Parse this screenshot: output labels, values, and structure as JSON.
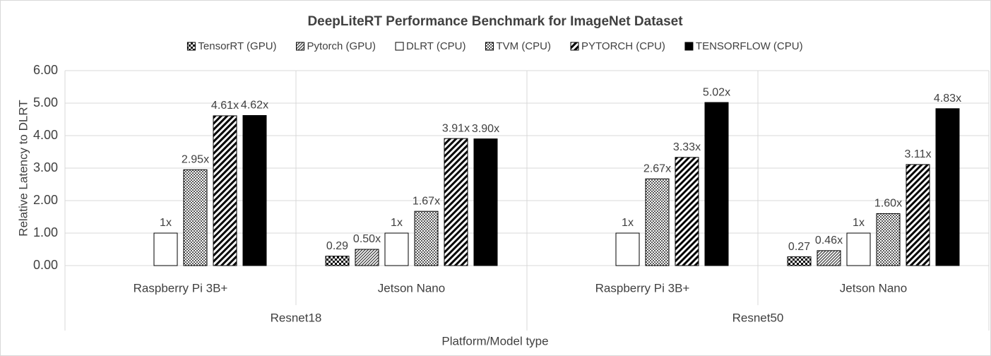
{
  "chart_data": {
    "type": "bar",
    "title": "DeepLiteRT Performance Benchmark for ImageNet Dataset",
    "y_label": "Relative Latency to DLRT",
    "x_label": "Platform/Model type",
    "categories": [
      "Raspberry Pi  3B+",
      "Jetson Nano",
      "Raspberry Pi  3B+",
      "Jetson Nano"
    ],
    "groups": [
      "Resnet18",
      "Resnet50"
    ],
    "series": [
      {
        "name": "TensorRT (GPU)",
        "color": "#000000",
        "pattern": "checker",
        "values": [
          null,
          0.29,
          null,
          0.27
        ],
        "value_labels": [
          null,
          "0.29",
          null,
          "0.27"
        ]
      },
      {
        "name": "Pytorch (GPU)",
        "color": "#000000",
        "pattern": "fine-diagonal",
        "values": [
          null,
          0.5,
          null,
          0.46
        ],
        "value_labels": [
          null,
          "0.50x",
          null,
          "0.46x"
        ]
      },
      {
        "name": "DLRT (CPU)",
        "color": "#000000",
        "pattern": "none",
        "values": [
          1,
          1,
          1,
          1
        ],
        "value_labels": [
          "1x",
          "1x",
          "1x",
          "1x"
        ]
      },
      {
        "name": "TVM (CPU)",
        "color": "#000000",
        "pattern": "dots",
        "values": [
          2.95,
          1.67,
          2.67,
          1.6
        ],
        "value_labels": [
          "2.95x",
          "1.67x",
          "2.67x",
          "1.60x"
        ]
      },
      {
        "name": "PYTORCH (CPU)",
        "color": "#000000",
        "pattern": "wide-diagonal",
        "values": [
          4.61,
          3.91,
          3.33,
          3.11
        ],
        "value_labels": [
          "4.61x",
          "3.91x",
          "3.33x",
          "3.11x"
        ]
      },
      {
        "name": "TENSORFLOW (CPU)",
        "color": "#000000",
        "pattern": "solid",
        "values": [
          4.62,
          3.9,
          5.02,
          4.83
        ],
        "value_labels": [
          "4.62x",
          "3.90x",
          "5.02x",
          "4.83x"
        ]
      }
    ],
    "ylim": [
      0,
      6
    ],
    "yticks": [
      {
        "value": 0,
        "label": "0.00"
      },
      {
        "value": 1,
        "label": "1.00"
      },
      {
        "value": 2,
        "label": "2.00"
      },
      {
        "value": 3,
        "label": "3.00"
      },
      {
        "value": 4,
        "label": "4.00"
      },
      {
        "value": 5,
        "label": "5.00"
      },
      {
        "value": 6,
        "label": "6.00"
      }
    ],
    "grid": true
  }
}
